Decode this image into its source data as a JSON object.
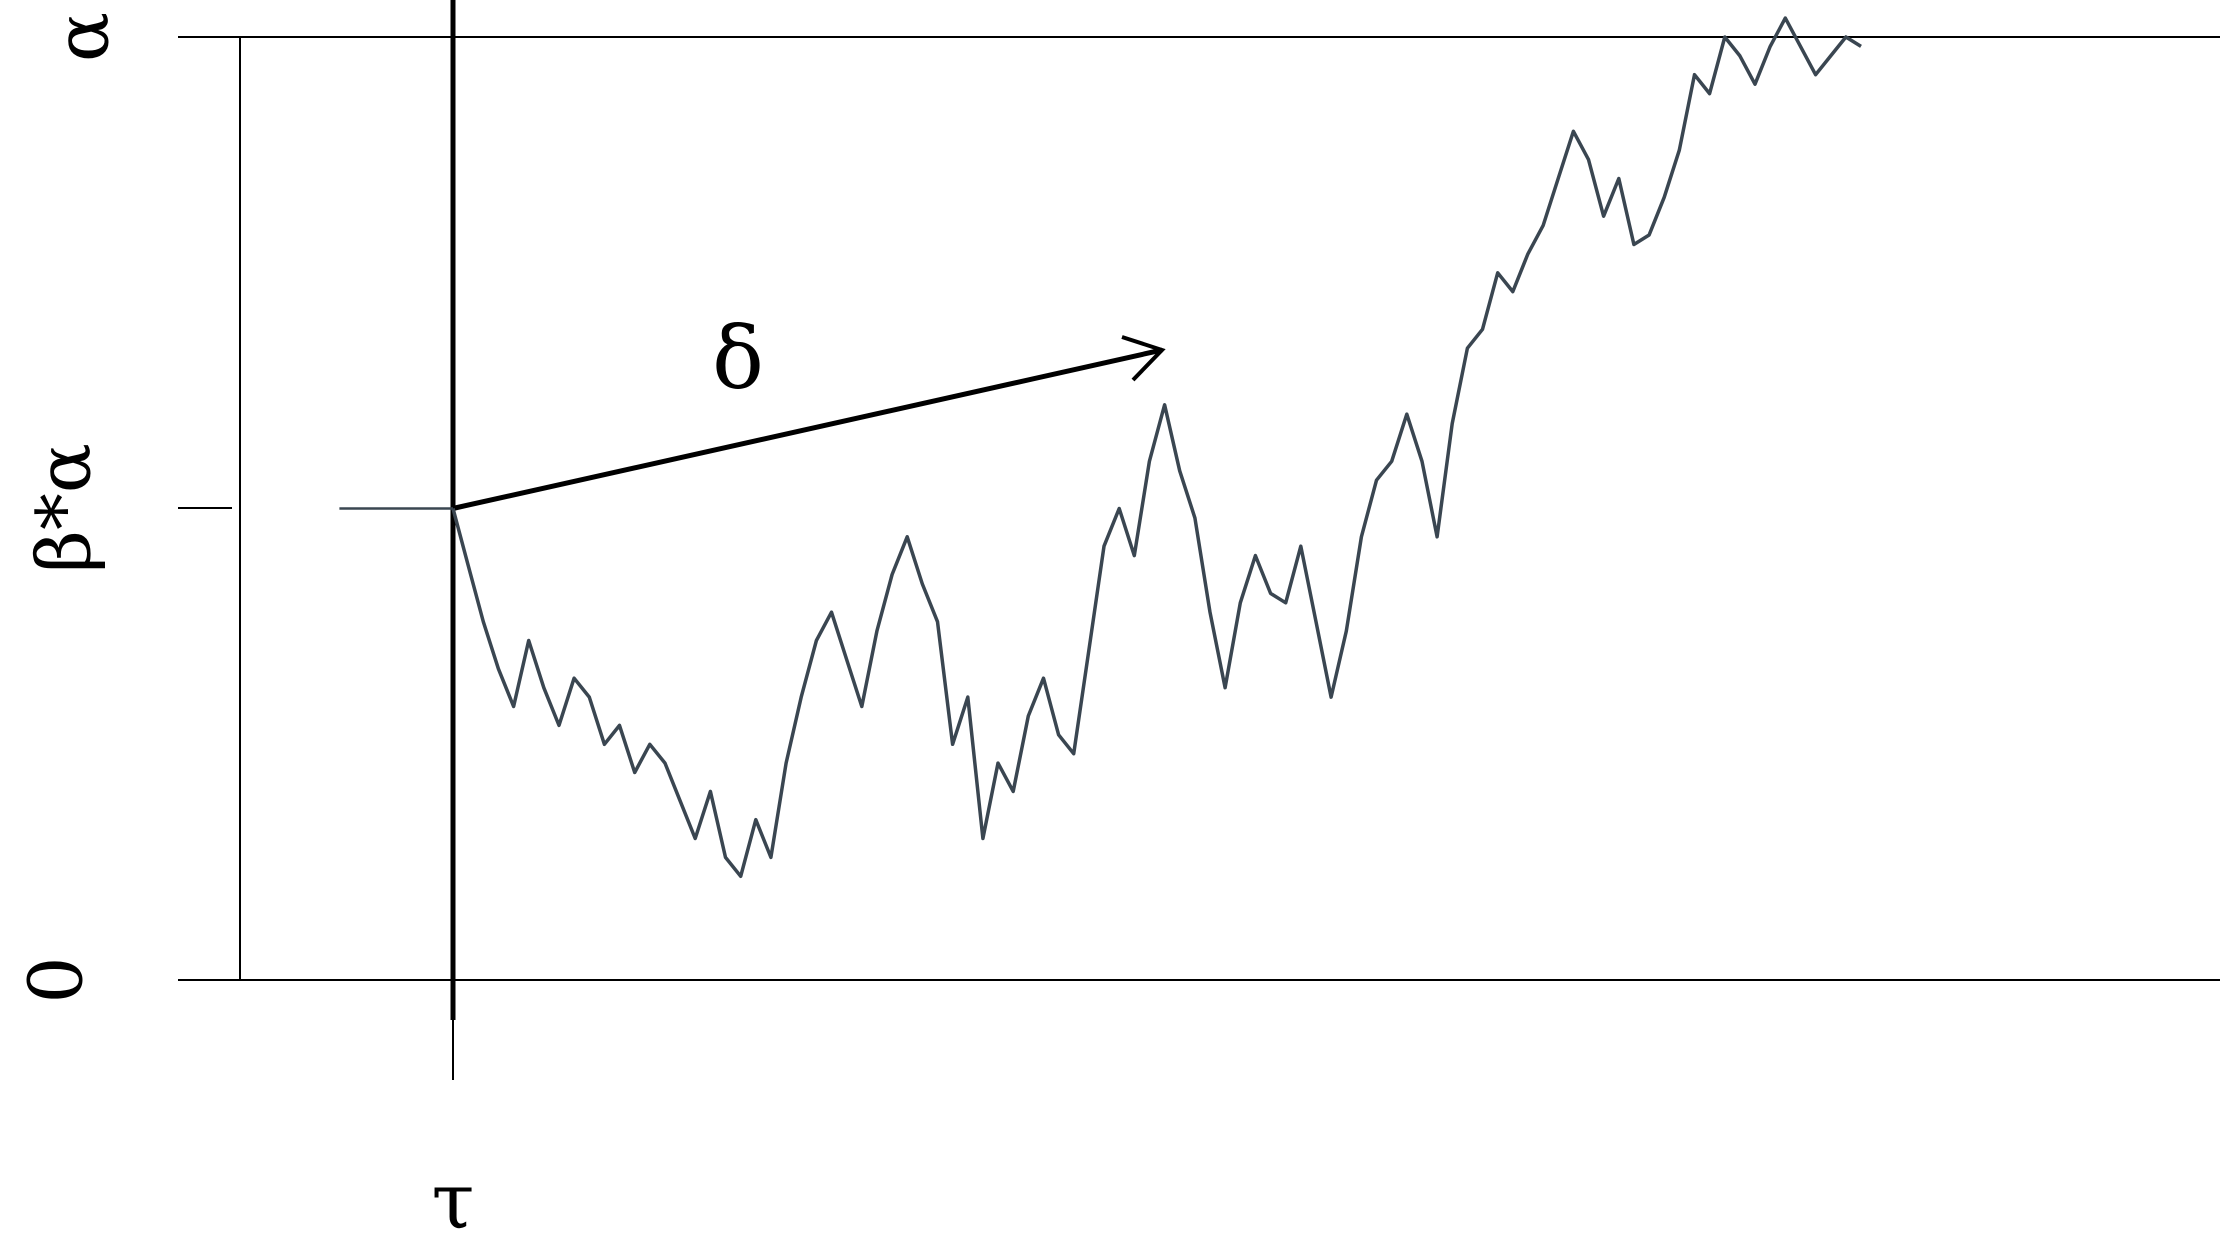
{
  "chart_data": {
    "type": "line",
    "y_ticks": [
      {
        "value": 0,
        "label": "0"
      },
      {
        "value": 0.5,
        "label": "β*α"
      },
      {
        "value": 1,
        "label": "α"
      }
    ],
    "x_ticks": [
      {
        "value": 0,
        "label": "τ"
      }
    ],
    "annotations": {
      "drift_arrow_label": "δ"
    },
    "ylim": [
      0,
      1
    ],
    "xlim": [
      -0.3,
      1.9
    ],
    "series": [
      {
        "x": [
          -0.15,
          0
        ],
        "y": [
          0.5,
          0.5
        ]
      },
      {
        "x": [
          0,
          0.02,
          0.04,
          0.06,
          0.08,
          0.1,
          0.12,
          0.14,
          0.16,
          0.18,
          0.2,
          0.22,
          0.24,
          0.26,
          0.28,
          0.3,
          0.32,
          0.34,
          0.36,
          0.38,
          0.4,
          0.42,
          0.44,
          0.46,
          0.48,
          0.5,
          0.52,
          0.54,
          0.56,
          0.58,
          0.6,
          0.62,
          0.64,
          0.66,
          0.68,
          0.7,
          0.72,
          0.74,
          0.76,
          0.78,
          0.8,
          0.82,
          0.84,
          0.86,
          0.88,
          0.9,
          0.92,
          0.94,
          0.96,
          0.98,
          1.0,
          1.02,
          1.04,
          1.06,
          1.08,
          1.1,
          1.12,
          1.14,
          1.16,
          1.18,
          1.2,
          1.22,
          1.24,
          1.26,
          1.28,
          1.3,
          1.32,
          1.34,
          1.36,
          1.38,
          1.4,
          1.42,
          1.44,
          1.46,
          1.48,
          1.5,
          1.52,
          1.54,
          1.56,
          1.58,
          1.6,
          1.62,
          1.64,
          1.66,
          1.68,
          1.7,
          1.72,
          1.74,
          1.76,
          1.78,
          1.8,
          1.82,
          1.84,
          1.86
        ],
        "y": [
          0.5,
          0.44,
          0.38,
          0.33,
          0.29,
          0.36,
          0.31,
          0.27,
          0.32,
          0.3,
          0.25,
          0.27,
          0.22,
          0.25,
          0.23,
          0.19,
          0.15,
          0.2,
          0.13,
          0.11,
          0.17,
          0.13,
          0.23,
          0.3,
          0.36,
          0.39,
          0.34,
          0.29,
          0.37,
          0.43,
          0.47,
          0.42,
          0.38,
          0.25,
          0.3,
          0.15,
          0.23,
          0.2,
          0.28,
          0.32,
          0.26,
          0.24,
          0.35,
          0.46,
          0.5,
          0.45,
          0.55,
          0.61,
          0.54,
          0.49,
          0.39,
          0.31,
          0.4,
          0.45,
          0.41,
          0.4,
          0.46,
          0.38,
          0.3,
          0.37,
          0.47,
          0.53,
          0.55,
          0.6,
          0.55,
          0.47,
          0.59,
          0.67,
          0.69,
          0.75,
          0.73,
          0.77,
          0.8,
          0.85,
          0.9,
          0.87,
          0.81,
          0.85,
          0.78,
          0.79,
          0.83,
          0.88,
          0.96,
          0.94,
          1.0,
          0.98,
          0.95,
          0.99,
          1.02,
          0.99,
          0.96,
          0.98,
          1.0,
          0.99
        ]
      }
    ]
  }
}
